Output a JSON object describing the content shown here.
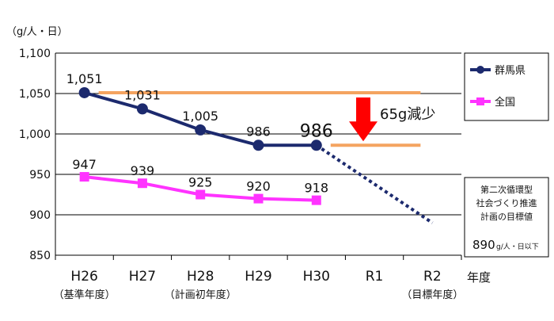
{
  "chart_data": {
    "type": "line",
    "unit_label": "（g/人・日）",
    "x_axis_title": "年度",
    "categories": [
      "H26",
      "H27",
      "H28",
      "H29",
      "H30",
      "R1",
      "R2"
    ],
    "category_notes": [
      "（基準年度）",
      "",
      "（計画初年度）",
      "",
      "",
      "",
      "（目標年度）"
    ],
    "ylim": [
      850,
      1100
    ],
    "yticks": [
      850,
      900,
      950,
      1000,
      1050,
      1100
    ],
    "ytick_labels": [
      "850",
      "900",
      "950",
      "1,000",
      "1,050",
      "1,100"
    ],
    "grid": true,
    "legend_position": "right",
    "series": [
      {
        "name": "群馬県",
        "color": "#1c2a6e",
        "marker": "circle",
        "values": [
          1051,
          1031,
          1005,
          986,
          986,
          null,
          null
        ],
        "labels": [
          "1,051",
          "1,031",
          "1,005",
          "986",
          "986",
          "",
          ""
        ]
      },
      {
        "name": "全国",
        "color": "#ff33ff",
        "marker": "square",
        "values": [
          947,
          939,
          925,
          920,
          918,
          null,
          null
        ],
        "labels": [
          "947",
          "939",
          "925",
          "920",
          "918",
          "",
          ""
        ]
      }
    ],
    "projection": {
      "from_category": "H30",
      "from_value": 986,
      "to_category": "R2",
      "to_value": 890,
      "color": "#1c2a6e",
      "style": "dotted"
    },
    "reference_lines": [
      {
        "value": 1051,
        "color": "#f4a460"
      },
      {
        "value": 986,
        "color": "#f4a460"
      }
    ],
    "reduction_annotation": {
      "text": "65g減少",
      "arrow_color": "#ff0000"
    },
    "target_box": {
      "lines": [
        "第二次循環型",
        "社会づくり推進",
        "計画の目標値"
      ],
      "value_text": "890",
      "unit_text": "g/人・日以下"
    }
  }
}
